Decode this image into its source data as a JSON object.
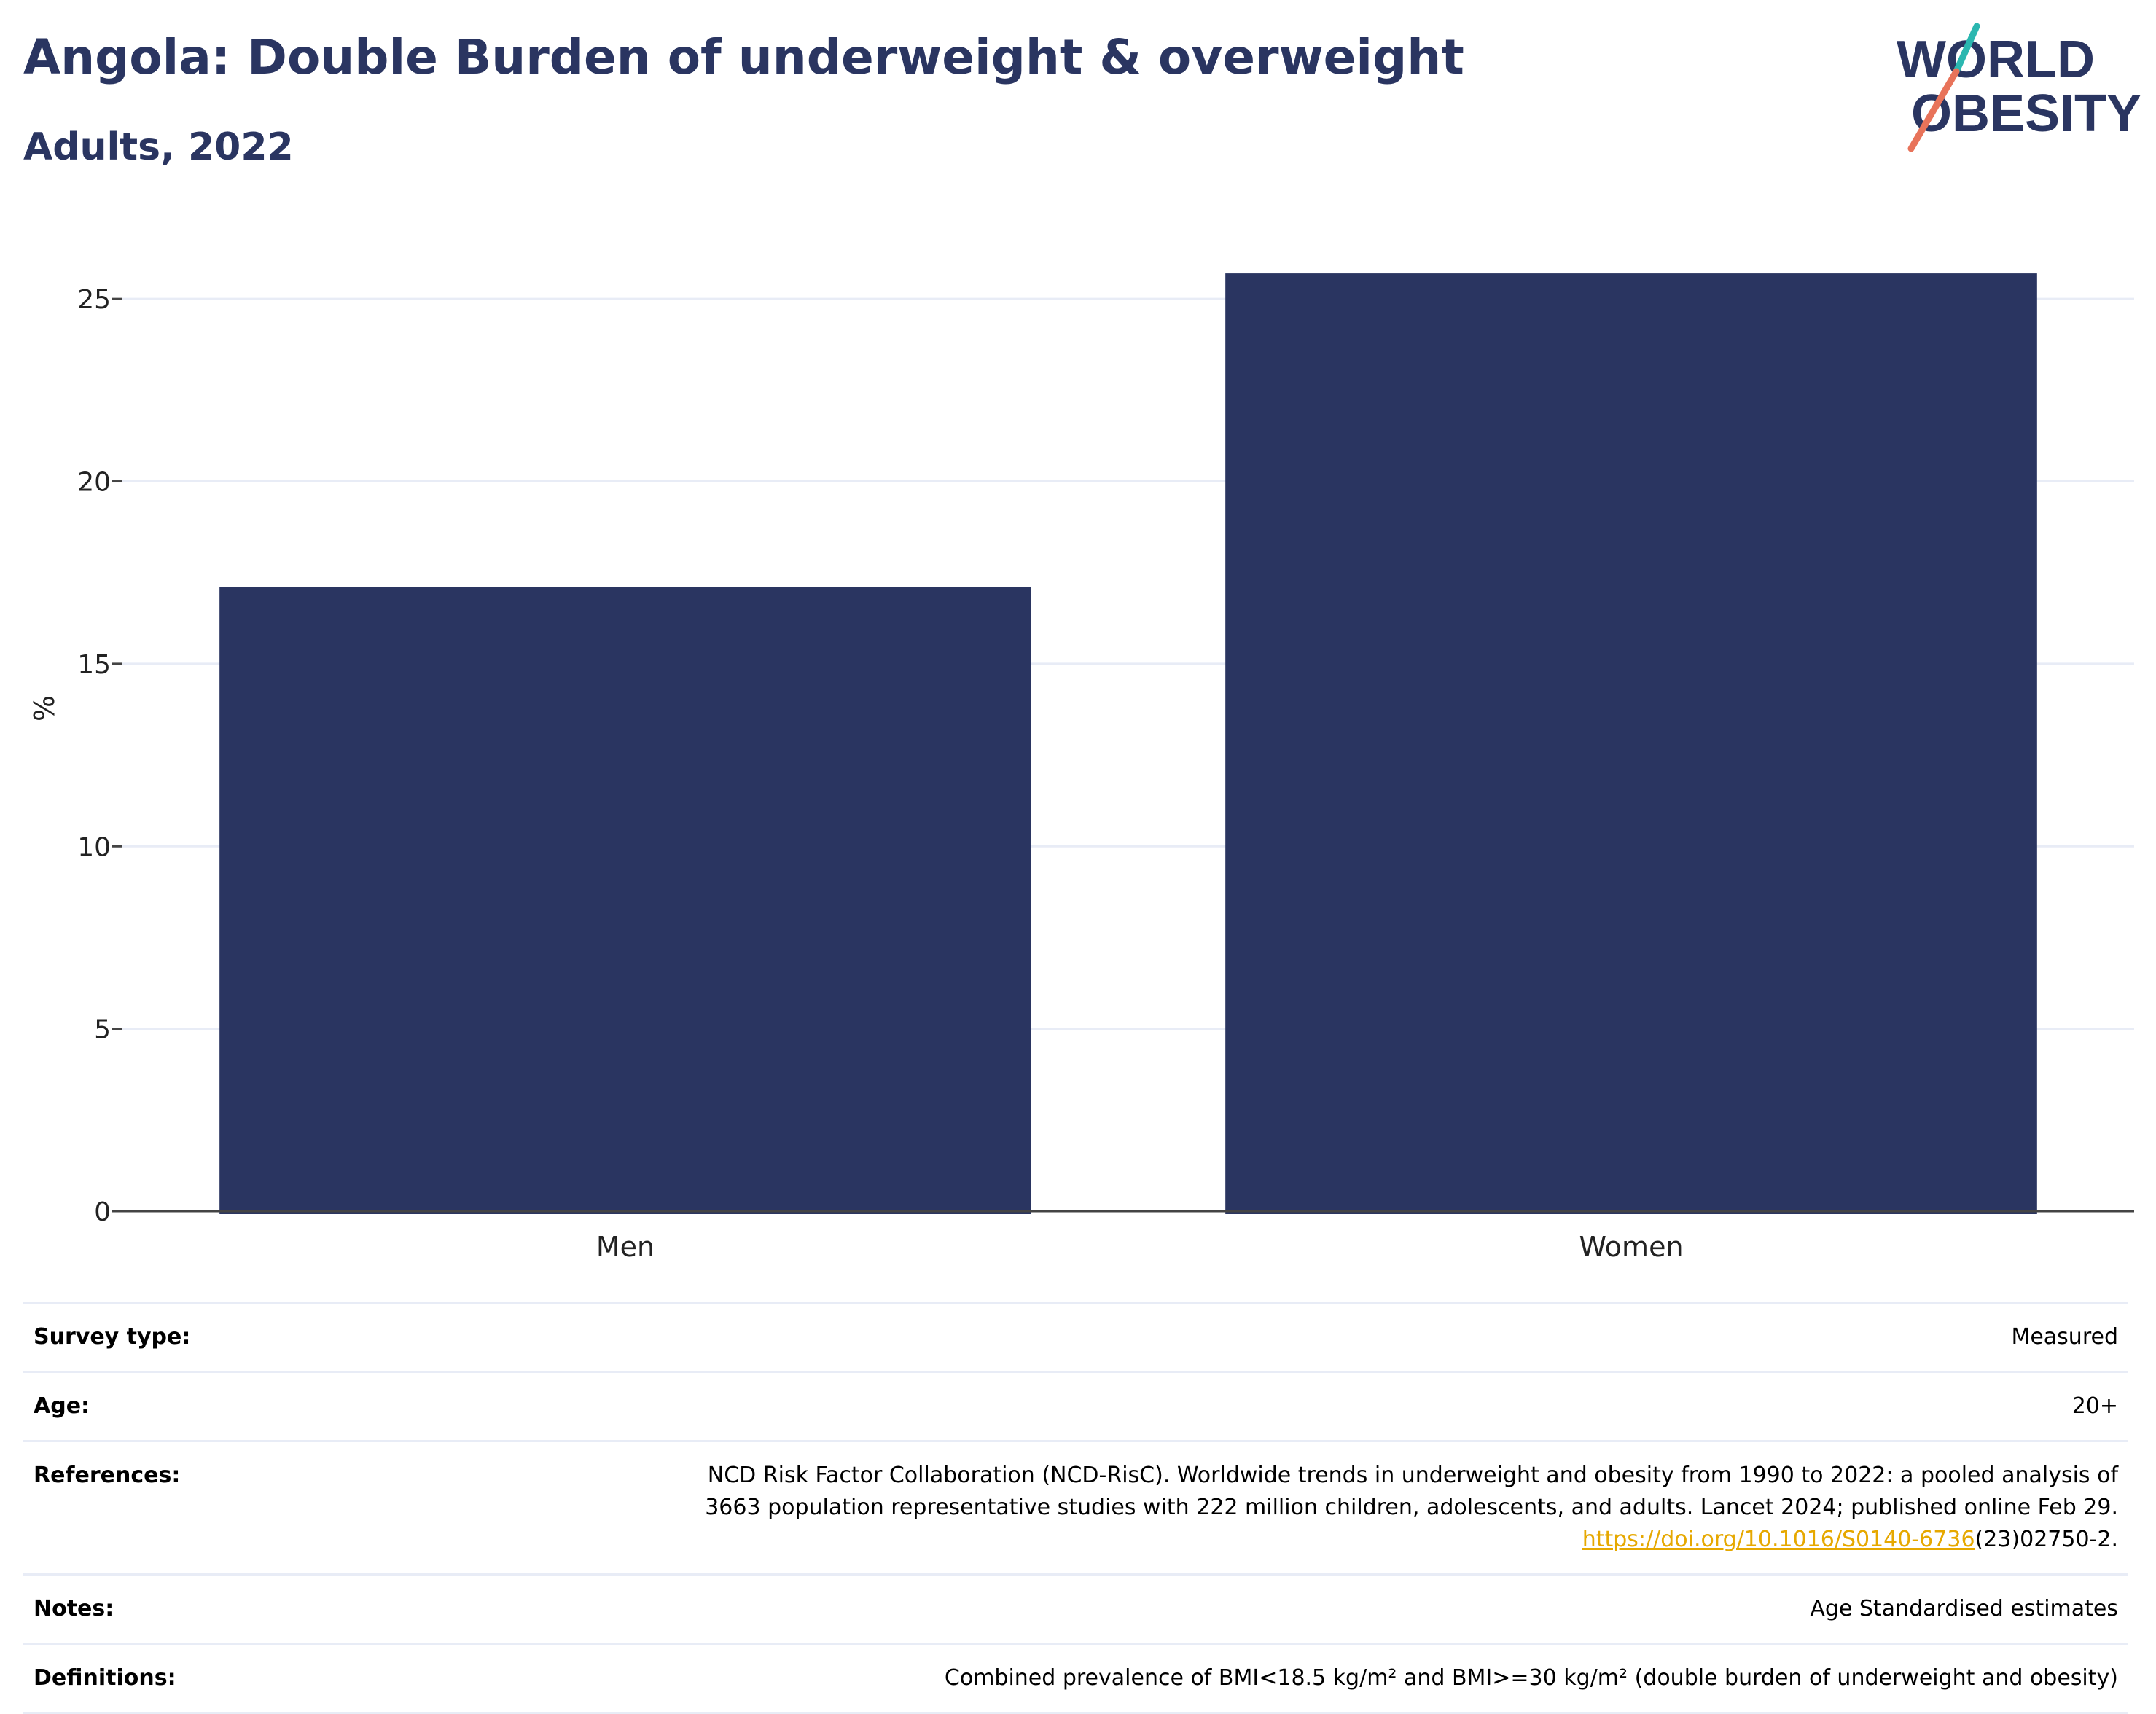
{
  "header": {
    "title": "Angola: Double Burden of underweight & overweight",
    "subtitle": "Adults, 2022"
  },
  "logo": {
    "line1": "WORLD",
    "line2": "OBESITY",
    "accent_teal": "#2bb7b0",
    "accent_coral": "#e8735a",
    "text_color": "#2a3561"
  },
  "chart_data": {
    "type": "bar",
    "categories": [
      "Men",
      "Women"
    ],
    "values": [
      17.1,
      25.7
    ],
    "ylabel": "%",
    "xlabel": "",
    "ylim": [
      0,
      27
    ],
    "yticks": [
      0,
      5,
      10,
      15,
      20,
      25
    ],
    "grid": true,
    "bar_color": "#2a3561",
    "grid_color": "#e8ecf6",
    "axis_color": "#444444"
  },
  "meta": {
    "survey_type": {
      "label": "Survey type:",
      "value": "Measured"
    },
    "age": {
      "label": "Age:",
      "value": "20+"
    },
    "references": {
      "label": "References:",
      "line1": "NCD Risk Factor Collaboration (NCD-RisC). Worldwide trends in underweight and obesity from 1990 to 2022: a pooled analysis of",
      "line2": "3663 population representative studies with 222 million children, adolescents, and adults. Lancet 2024; published online Feb 29.",
      "link_text": "https://doi.org/10.1016/S0140-6736",
      "link_suffix": "(23)02750-2."
    },
    "notes": {
      "label": "Notes:",
      "value": "Age Standardised estimates"
    },
    "definitions": {
      "label": "Definitions:",
      "value": "Combined prevalence of BMI<18.5 kg/m² and BMI>=30 kg/m² (double burden of underweight and obesity)"
    }
  }
}
